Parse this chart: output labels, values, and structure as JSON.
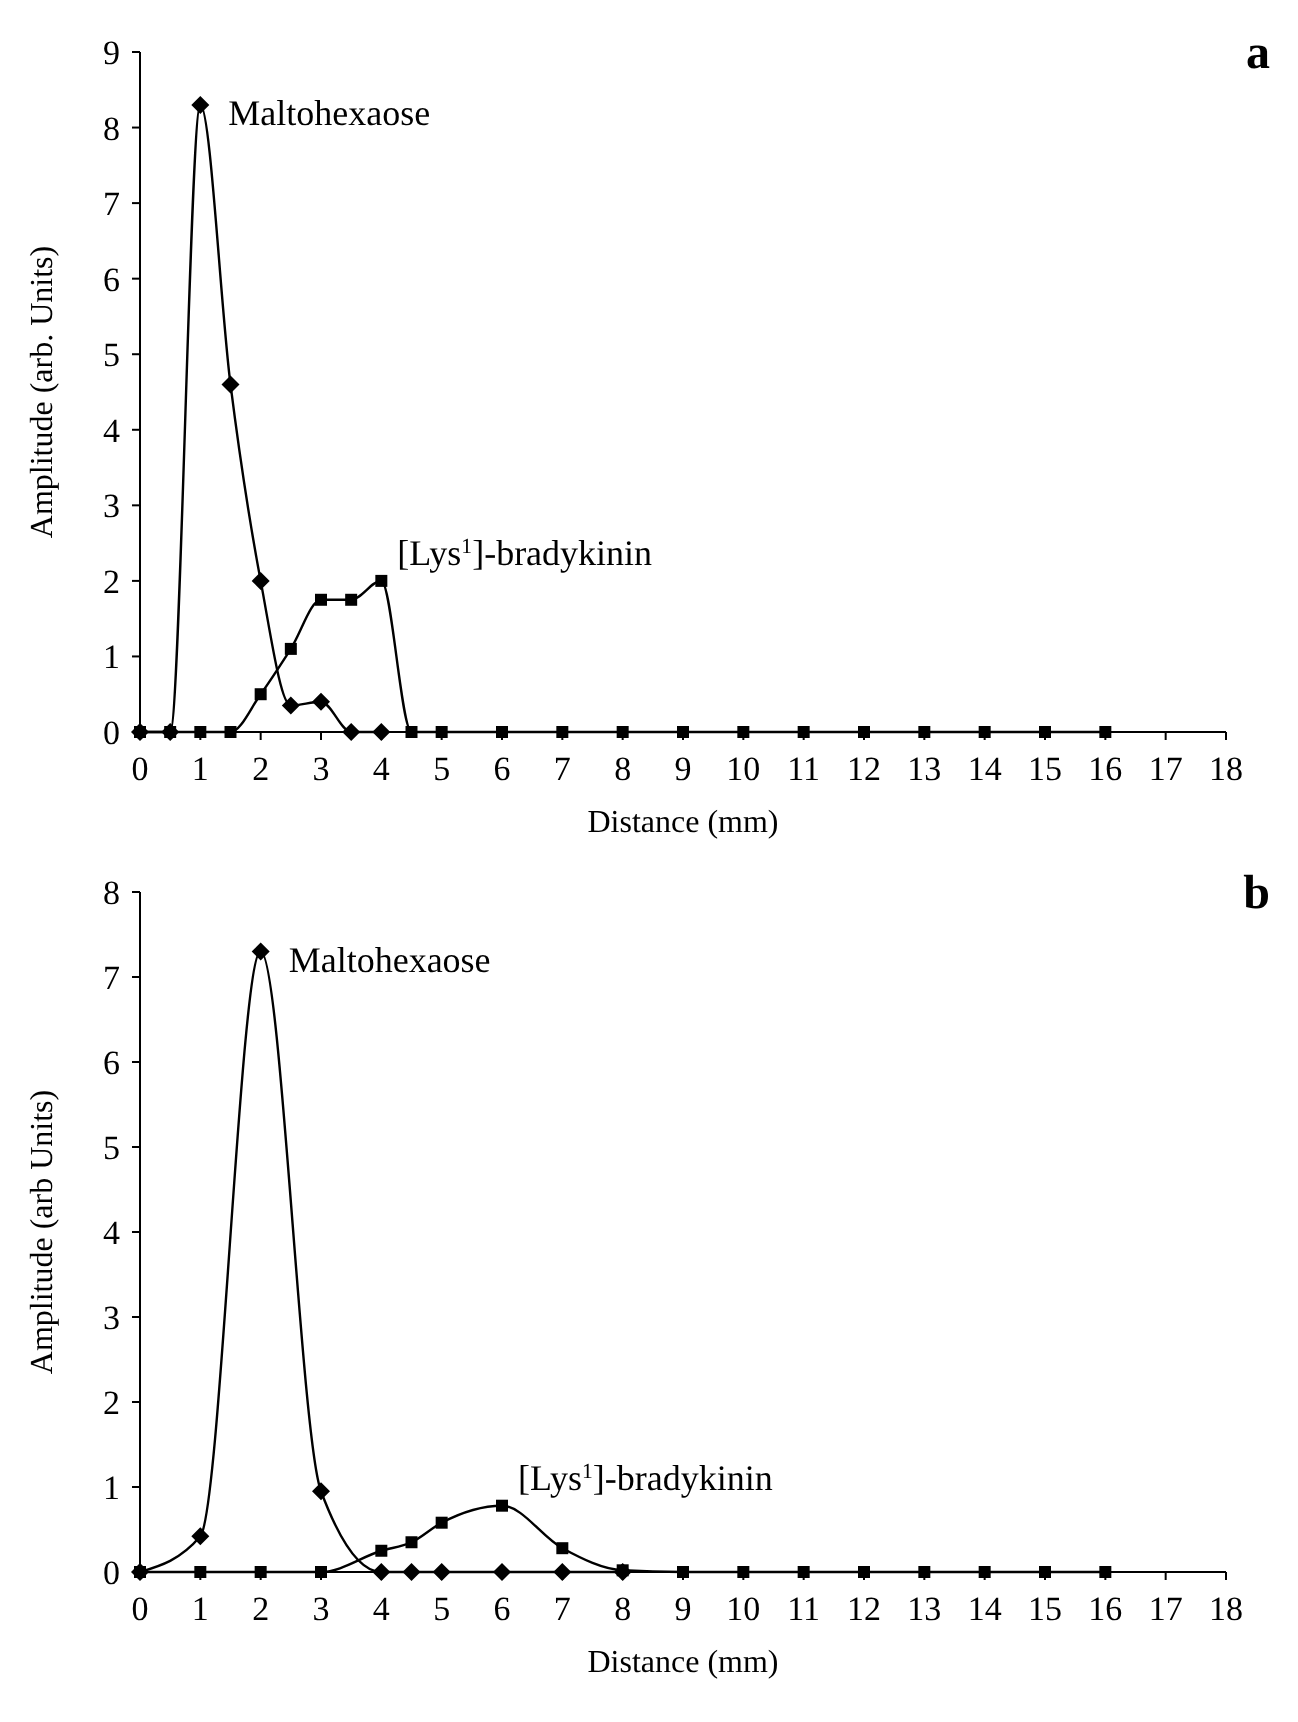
{
  "chart_data": [
    {
      "type": "line",
      "title": "a",
      "xlabel": "Distance (mm)",
      "ylabel": "Amplitude (arb. Units)",
      "xlim": [
        0,
        18
      ],
      "xticks": [
        0,
        1,
        2,
        3,
        4,
        5,
        6,
        7,
        8,
        9,
        10,
        11,
        12,
        13,
        14,
        15,
        16,
        17,
        18
      ],
      "ylim": [
        0,
        9
      ],
      "yticks": [
        0,
        1,
        2,
        3,
        4,
        5,
        6,
        7,
        8,
        9
      ],
      "grid": false,
      "series": [
        {
          "name": "Maltohexaose",
          "color": "#000000",
          "marker": "diamond",
          "x": [
            0,
            0.5,
            1,
            1.5,
            2,
            2.5,
            3,
            3.5,
            4
          ],
          "values": [
            0,
            0,
            8.3,
            4.6,
            2.0,
            0.35,
            0.4,
            0,
            0
          ]
        },
        {
          "name": "[Lys$^{1}$]-bradykinin",
          "color": "#000000",
          "marker": "square",
          "x": [
            0,
            0.5,
            1,
            1.5,
            2,
            2.5,
            3,
            3.5,
            4,
            4.5,
            5,
            6,
            7,
            8,
            9,
            10,
            11,
            12,
            13,
            14,
            15,
            16
          ],
          "values": [
            0,
            0,
            0,
            0,
            0.5,
            1.1,
            1.75,
            1.75,
            2.0,
            0,
            0,
            0,
            0,
            0,
            0,
            0,
            0,
            0,
            0,
            0,
            0,
            0
          ]
        }
      ]
    },
    {
      "type": "line",
      "title": "b",
      "xlabel": "Distance (mm)",
      "ylabel": "Amplitude (arb Units)",
      "xlim": [
        0,
        18
      ],
      "xticks": [
        0,
        1,
        2,
        3,
        4,
        5,
        6,
        7,
        8,
        9,
        10,
        11,
        12,
        13,
        14,
        15,
        16,
        17,
        18
      ],
      "ylim": [
        0,
        8
      ],
      "yticks": [
        0,
        1,
        2,
        3,
        4,
        5,
        6,
        7,
        8
      ],
      "grid": false,
      "series": [
        {
          "name": "Maltohexaose",
          "color": "#000000",
          "marker": "diamond",
          "x": [
            0,
            1,
            2,
            3,
            4,
            4.5,
            5,
            6,
            7,
            8
          ],
          "values": [
            0,
            0.42,
            7.3,
            0.95,
            0,
            0,
            0,
            0,
            0,
            0
          ]
        },
        {
          "name": "[Lys$^{1}$]-bradykinin",
          "color": "#000000",
          "marker": "square",
          "x": [
            0,
            1,
            2,
            3,
            4,
            4.5,
            5,
            6,
            7,
            8,
            9,
            10,
            11,
            12,
            13,
            14,
            15,
            16
          ],
          "values": [
            0,
            0,
            0,
            0,
            0.25,
            0.35,
            0.58,
            0.78,
            0.28,
            0.02,
            0,
            0,
            0,
            0,
            0,
            0,
            0,
            0
          ]
        }
      ]
    }
  ]
}
